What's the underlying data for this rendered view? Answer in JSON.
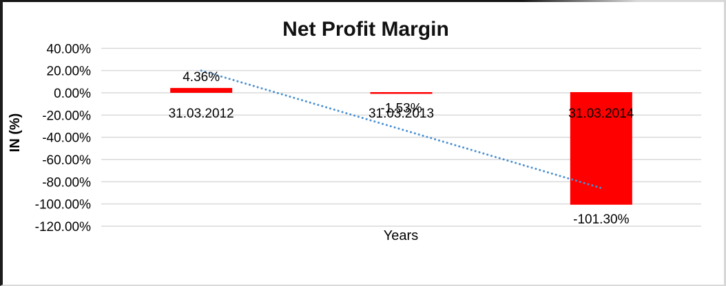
{
  "chart_data": {
    "type": "bar",
    "title": "Net Profit Margin",
    "xlabel": "Years",
    "ylabel": "IN (%)",
    "categories": [
      "31.03.2012",
      "31.03.2013",
      "31.03.2014"
    ],
    "series": [
      {
        "name": "Net Profit Margin",
        "values": [
          4.36,
          -1.53,
          -101.3
        ]
      }
    ],
    "data_labels": [
      "4.36%",
      "-1.53%",
      "-101.30%"
    ],
    "y_ticks": [
      {
        "value": 40,
        "label": "40.00%"
      },
      {
        "value": 20,
        "label": "20.00%"
      },
      {
        "value": 0,
        "label": "0.00%"
      },
      {
        "value": -20,
        "label": "-20.00%"
      },
      {
        "value": -40,
        "label": "-40.00%"
      },
      {
        "value": -60,
        "label": "-60.00%"
      },
      {
        "value": -80,
        "label": "-80.00%"
      },
      {
        "value": -100,
        "label": "-100.00%"
      },
      {
        "value": -120,
        "label": "-120.00%"
      }
    ],
    "ylim": [
      -120,
      40
    ],
    "grid": true,
    "legend": "none",
    "colors": {
      "bar": "#ff0000",
      "gridline": "#d9d9d9",
      "text": "#000000",
      "trendline": "#4a90d2",
      "background": "#ffffff"
    },
    "trendline": {
      "type": "linear",
      "style": "dotted",
      "start_value": 20.0,
      "end_value": -85.7
    }
  }
}
